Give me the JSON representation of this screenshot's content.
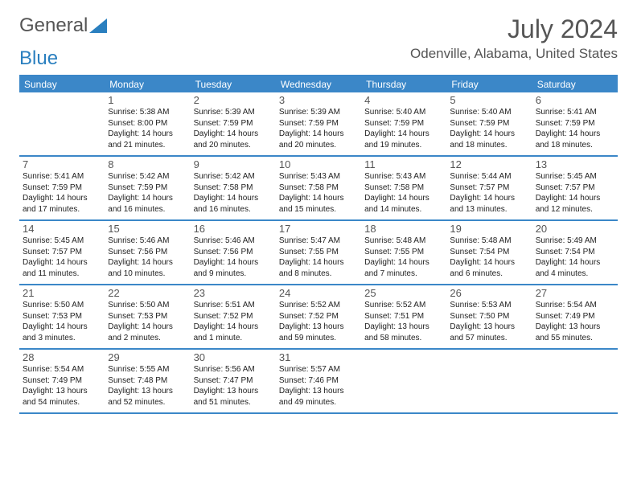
{
  "brand": {
    "word1": "General",
    "word2": "Blue"
  },
  "month_title": "July 2024",
  "location": "Odenville, Alabama, United States",
  "header_accent_color": "#3b87c8",
  "day_names": [
    "Sunday",
    "Monday",
    "Tuesday",
    "Wednesday",
    "Thursday",
    "Friday",
    "Saturday"
  ],
  "weeks": [
    [
      {
        "num": "",
        "lines": []
      },
      {
        "num": "1",
        "lines": [
          "Sunrise: 5:38 AM",
          "Sunset: 8:00 PM",
          "Daylight: 14 hours",
          "and 21 minutes."
        ]
      },
      {
        "num": "2",
        "lines": [
          "Sunrise: 5:39 AM",
          "Sunset: 7:59 PM",
          "Daylight: 14 hours",
          "and 20 minutes."
        ]
      },
      {
        "num": "3",
        "lines": [
          "Sunrise: 5:39 AM",
          "Sunset: 7:59 PM",
          "Daylight: 14 hours",
          "and 20 minutes."
        ]
      },
      {
        "num": "4",
        "lines": [
          "Sunrise: 5:40 AM",
          "Sunset: 7:59 PM",
          "Daylight: 14 hours",
          "and 19 minutes."
        ]
      },
      {
        "num": "5",
        "lines": [
          "Sunrise: 5:40 AM",
          "Sunset: 7:59 PM",
          "Daylight: 14 hours",
          "and 18 minutes."
        ]
      },
      {
        "num": "6",
        "lines": [
          "Sunrise: 5:41 AM",
          "Sunset: 7:59 PM",
          "Daylight: 14 hours",
          "and 18 minutes."
        ]
      }
    ],
    [
      {
        "num": "7",
        "lines": [
          "Sunrise: 5:41 AM",
          "Sunset: 7:59 PM",
          "Daylight: 14 hours",
          "and 17 minutes."
        ]
      },
      {
        "num": "8",
        "lines": [
          "Sunrise: 5:42 AM",
          "Sunset: 7:59 PM",
          "Daylight: 14 hours",
          "and 16 minutes."
        ]
      },
      {
        "num": "9",
        "lines": [
          "Sunrise: 5:42 AM",
          "Sunset: 7:58 PM",
          "Daylight: 14 hours",
          "and 16 minutes."
        ]
      },
      {
        "num": "10",
        "lines": [
          "Sunrise: 5:43 AM",
          "Sunset: 7:58 PM",
          "Daylight: 14 hours",
          "and 15 minutes."
        ]
      },
      {
        "num": "11",
        "lines": [
          "Sunrise: 5:43 AM",
          "Sunset: 7:58 PM",
          "Daylight: 14 hours",
          "and 14 minutes."
        ]
      },
      {
        "num": "12",
        "lines": [
          "Sunrise: 5:44 AM",
          "Sunset: 7:57 PM",
          "Daylight: 14 hours",
          "and 13 minutes."
        ]
      },
      {
        "num": "13",
        "lines": [
          "Sunrise: 5:45 AM",
          "Sunset: 7:57 PM",
          "Daylight: 14 hours",
          "and 12 minutes."
        ]
      }
    ],
    [
      {
        "num": "14",
        "lines": [
          "Sunrise: 5:45 AM",
          "Sunset: 7:57 PM",
          "Daylight: 14 hours",
          "and 11 minutes."
        ]
      },
      {
        "num": "15",
        "lines": [
          "Sunrise: 5:46 AM",
          "Sunset: 7:56 PM",
          "Daylight: 14 hours",
          "and 10 minutes."
        ]
      },
      {
        "num": "16",
        "lines": [
          "Sunrise: 5:46 AM",
          "Sunset: 7:56 PM",
          "Daylight: 14 hours",
          "and 9 minutes."
        ]
      },
      {
        "num": "17",
        "lines": [
          "Sunrise: 5:47 AM",
          "Sunset: 7:55 PM",
          "Daylight: 14 hours",
          "and 8 minutes."
        ]
      },
      {
        "num": "18",
        "lines": [
          "Sunrise: 5:48 AM",
          "Sunset: 7:55 PM",
          "Daylight: 14 hours",
          "and 7 minutes."
        ]
      },
      {
        "num": "19",
        "lines": [
          "Sunrise: 5:48 AM",
          "Sunset: 7:54 PM",
          "Daylight: 14 hours",
          "and 6 minutes."
        ]
      },
      {
        "num": "20",
        "lines": [
          "Sunrise: 5:49 AM",
          "Sunset: 7:54 PM",
          "Daylight: 14 hours",
          "and 4 minutes."
        ]
      }
    ],
    [
      {
        "num": "21",
        "lines": [
          "Sunrise: 5:50 AM",
          "Sunset: 7:53 PM",
          "Daylight: 14 hours",
          "and 3 minutes."
        ]
      },
      {
        "num": "22",
        "lines": [
          "Sunrise: 5:50 AM",
          "Sunset: 7:53 PM",
          "Daylight: 14 hours",
          "and 2 minutes."
        ]
      },
      {
        "num": "23",
        "lines": [
          "Sunrise: 5:51 AM",
          "Sunset: 7:52 PM",
          "Daylight: 14 hours",
          "and 1 minute."
        ]
      },
      {
        "num": "24",
        "lines": [
          "Sunrise: 5:52 AM",
          "Sunset: 7:52 PM",
          "Daylight: 13 hours",
          "and 59 minutes."
        ]
      },
      {
        "num": "25",
        "lines": [
          "Sunrise: 5:52 AM",
          "Sunset: 7:51 PM",
          "Daylight: 13 hours",
          "and 58 minutes."
        ]
      },
      {
        "num": "26",
        "lines": [
          "Sunrise: 5:53 AM",
          "Sunset: 7:50 PM",
          "Daylight: 13 hours",
          "and 57 minutes."
        ]
      },
      {
        "num": "27",
        "lines": [
          "Sunrise: 5:54 AM",
          "Sunset: 7:49 PM",
          "Daylight: 13 hours",
          "and 55 minutes."
        ]
      }
    ],
    [
      {
        "num": "28",
        "lines": [
          "Sunrise: 5:54 AM",
          "Sunset: 7:49 PM",
          "Daylight: 13 hours",
          "and 54 minutes."
        ]
      },
      {
        "num": "29",
        "lines": [
          "Sunrise: 5:55 AM",
          "Sunset: 7:48 PM",
          "Daylight: 13 hours",
          "and 52 minutes."
        ]
      },
      {
        "num": "30",
        "lines": [
          "Sunrise: 5:56 AM",
          "Sunset: 7:47 PM",
          "Daylight: 13 hours",
          "and 51 minutes."
        ]
      },
      {
        "num": "31",
        "lines": [
          "Sunrise: 5:57 AM",
          "Sunset: 7:46 PM",
          "Daylight: 13 hours",
          "and 49 minutes."
        ]
      },
      {
        "num": "",
        "lines": []
      },
      {
        "num": "",
        "lines": []
      },
      {
        "num": "",
        "lines": []
      }
    ]
  ]
}
